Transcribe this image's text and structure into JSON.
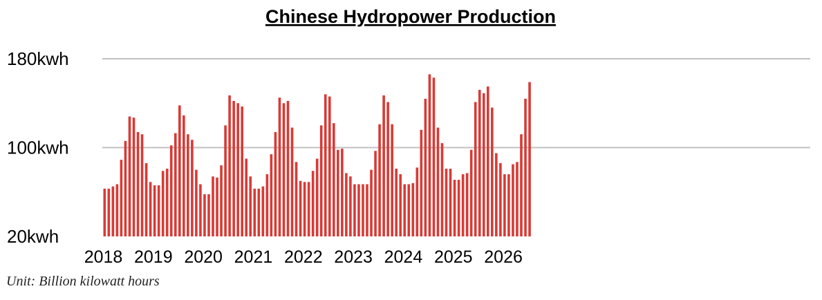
{
  "chart_data": {
    "type": "bar",
    "title": "Chinese Hydropower Production",
    "unit_note": "Unit: Billion kilowatt hours",
    "y_tick_labels": [
      "180kwh",
      "100kwh",
      "20kwh"
    ],
    "y_ticks": [
      180,
      100,
      20
    ],
    "ylim": [
      20,
      180
    ],
    "x_tick_labels": [
      "2018",
      "2019",
      "2020",
      "2021",
      "2022",
      "2023",
      "2024",
      "2025",
      "2026"
    ],
    "grid": true,
    "bar_color": "#d93a35",
    "grid_color": "#c0c0c0",
    "series": [
      {
        "values": [
          63,
          63,
          65,
          67,
          89,
          106,
          128,
          127,
          114,
          112,
          86,
          69,
          66,
          66,
          79,
          81,
          102,
          113,
          138,
          129,
          112,
          107,
          80,
          67,
          58,
          58,
          74,
          73,
          84,
          120,
          147,
          142,
          140,
          137,
          90,
          74,
          63,
          63,
          65,
          76,
          94,
          114,
          145,
          140,
          142,
          118,
          87,
          70,
          69,
          69,
          79,
          90,
          120,
          148,
          146,
          122,
          98,
          99,
          77,
          74,
          67,
          67,
          67,
          67,
          80,
          97,
          121,
          147,
          141,
          121,
          81,
          76,
          67,
          67,
          68,
          82,
          116,
          144,
          166,
          163,
          118,
          104,
          81,
          81,
          71,
          71,
          76,
          77,
          98,
          141,
          152,
          149,
          155,
          136,
          95,
          86,
          76,
          76,
          85,
          87,
          112,
          144,
          159
        ]
      }
    ]
  }
}
